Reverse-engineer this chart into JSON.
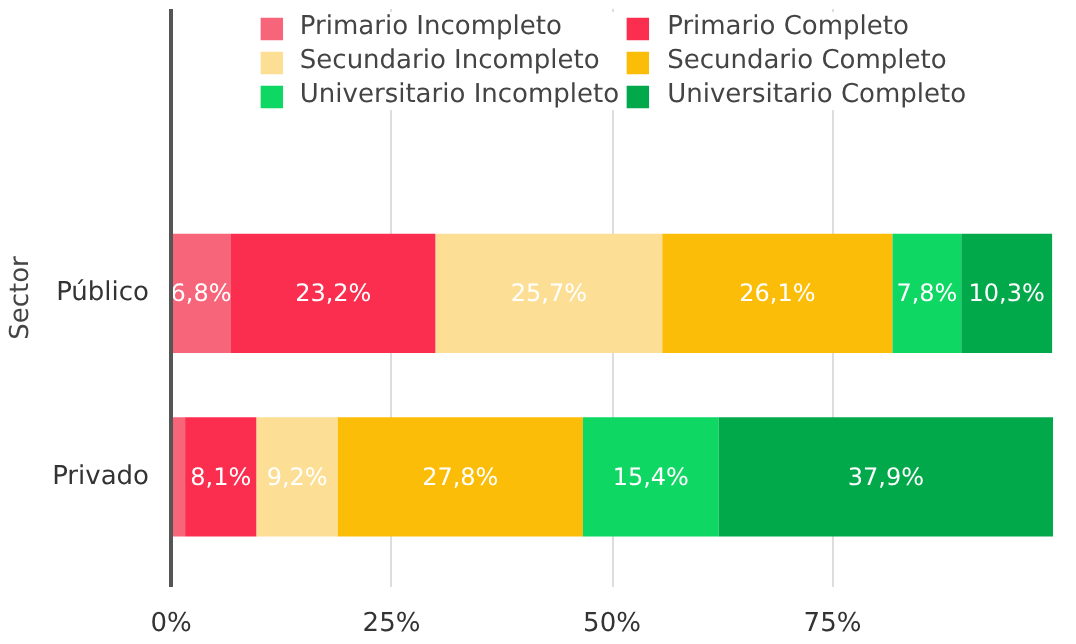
{
  "chart_data": {
    "type": "bar",
    "orientation": "horizontal",
    "stacked": true,
    "ylabel": "Sector",
    "categories": [
      "Público",
      "Privado"
    ],
    "series": [
      {
        "name": "Primario Incompleto",
        "color": "#f7657a",
        "values": [
          6.8,
          1.6
        ],
        "value_labels": [
          "6,8%",
          null
        ]
      },
      {
        "name": "Primario Completo",
        "color": "#fb2e4f",
        "values": [
          23.2,
          8.1
        ],
        "value_labels": [
          "23,2%",
          "8,1%"
        ]
      },
      {
        "name": "Secundario Incompleto",
        "color": "#fcdf94",
        "values": [
          25.7,
          9.2
        ],
        "value_labels": [
          "25,7%",
          "9,2%"
        ]
      },
      {
        "name": "Secundario Completo",
        "color": "#fbbd08",
        "values": [
          26.1,
          27.8
        ],
        "value_labels": [
          "26,1%",
          "27,8%"
        ]
      },
      {
        "name": "Universitario Incompleto",
        "color": "#0ed764",
        "values": [
          7.8,
          15.4
        ],
        "value_labels": [
          "7,8%",
          "15,4%"
        ]
      },
      {
        "name": "Universitario Completo",
        "color": "#02a94b",
        "values": [
          10.3,
          37.9
        ],
        "value_labels": [
          "10,3%",
          "37,9%"
        ]
      }
    ],
    "xlim": [
      0,
      100
    ],
    "xticks": [
      {
        "value": 0,
        "label": "0%"
      },
      {
        "value": 25,
        "label": "25%"
      },
      {
        "value": 50,
        "label": "50%"
      },
      {
        "value": 75,
        "label": "75%"
      }
    ],
    "grid": "x",
    "legend": "top"
  }
}
